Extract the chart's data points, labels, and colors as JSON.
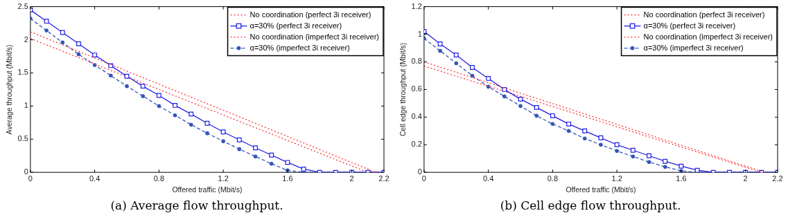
{
  "chart_data": [
    {
      "type": "line",
      "title": "(a) Average flow throughput.",
      "xlabel": "Offered traffic (Mbit/s)",
      "ylabel": "Average throughput (Mbit/s)",
      "x": [
        0,
        0.1,
        0.2,
        0.3,
        0.4,
        0.5,
        0.6,
        0.7,
        0.8,
        0.9,
        1.0,
        1.1,
        1.2,
        1.3,
        1.4,
        1.5,
        1.6,
        1.7,
        1.8,
        1.9,
        2.0,
        2.1,
        2.2
      ],
      "series": [
        {
          "name": "No coordination (perfect 3i receiver)",
          "color": "#ff3333",
          "x": [
            0,
            2.15
          ],
          "values": [
            2.12,
            0
          ],
          "marker": "none",
          "line_style": "dotted"
        },
        {
          "name": "α=30% (perfect 3i receiver)",
          "color": "#1f1fe6",
          "values": [
            2.45,
            2.28,
            2.11,
            1.94,
            1.77,
            1.61,
            1.45,
            1.3,
            1.16,
            1.01,
            0.88,
            0.74,
            0.61,
            0.49,
            0.37,
            0.26,
            0.15,
            0.05,
            0,
            0,
            0,
            0,
            0
          ],
          "marker": "square",
          "line_style": "solid"
        },
        {
          "name": "No coordination (imperfect 3i receiver)",
          "color": "#ff3333",
          "x": [
            0,
            2.1
          ],
          "values": [
            2.02,
            0
          ],
          "marker": "none",
          "line_style": "dotted"
        },
        {
          "name": "α=30% (imperfect 3i receiver)",
          "color": "#3355bb",
          "values": [
            2.32,
            2.14,
            1.96,
            1.78,
            1.62,
            1.46,
            1.3,
            1.15,
            1.0,
            0.86,
            0.72,
            0.59,
            0.47,
            0.35,
            0.24,
            0.13,
            0.03,
            0,
            0,
            0,
            0,
            0,
            0
          ],
          "marker": "circle",
          "line_style": "dashed"
        }
      ],
      "xlim": [
        0,
        2.2
      ],
      "xticks": [
        0,
        0.4,
        0.8,
        1.2,
        1.6,
        2,
        2.2
      ],
      "ylim": [
        0,
        2.5
      ],
      "yticks": [
        0,
        0.5,
        1,
        1.5,
        2,
        2.5
      ],
      "grid": false,
      "legend": "top right"
    },
    {
      "type": "line",
      "title": "(b) Cell edge flow throughput.",
      "xlabel": "Offered traffic (Mbit/s)",
      "ylabel": "Cell edge throughput (Mbit/s)",
      "x": [
        0,
        0.1,
        0.2,
        0.3,
        0.4,
        0.5,
        0.6,
        0.7,
        0.8,
        0.9,
        1.0,
        1.1,
        1.2,
        1.3,
        1.4,
        1.5,
        1.6,
        1.7,
        1.8,
        1.9,
        2.0,
        2.1,
        2.2
      ],
      "series": [
        {
          "name": "No coordination (perfect 3i receiver)",
          "color": "#ff3333",
          "x": [
            0,
            2.12
          ],
          "values": [
            0.8,
            0
          ],
          "marker": "none",
          "line_style": "dotted"
        },
        {
          "name": "α=30% (perfect 3i receiver)",
          "color": "#1f1fe6",
          "values": [
            1.02,
            0.93,
            0.85,
            0.76,
            0.68,
            0.6,
            0.53,
            0.47,
            0.41,
            0.35,
            0.3,
            0.25,
            0.2,
            0.16,
            0.12,
            0.08,
            0.045,
            0.015,
            0,
            0,
            0,
            0,
            0
          ],
          "marker": "square",
          "line_style": "solid"
        },
        {
          "name": "No coordination (imperfect 3i receiver)",
          "color": "#ff3333",
          "x": [
            0,
            2.1
          ],
          "values": [
            0.77,
            0
          ],
          "marker": "none",
          "line_style": "dotted"
        },
        {
          "name": "α=30% (imperfect 3i receiver)",
          "color": "#3355bb",
          "values": [
            0.97,
            0.88,
            0.79,
            0.7,
            0.62,
            0.55,
            0.48,
            0.41,
            0.35,
            0.3,
            0.245,
            0.2,
            0.155,
            0.115,
            0.075,
            0.04,
            0.01,
            0,
            0,
            0,
            0,
            0,
            0
          ],
          "marker": "circle",
          "line_style": "dashed"
        }
      ],
      "xlim": [
        0,
        2.2
      ],
      "xticks": [
        0,
        0.4,
        0.8,
        1.2,
        1.6,
        2,
        2.2
      ],
      "ylim": [
        0,
        1.2
      ],
      "yticks": [
        0,
        0.2,
        0.4,
        0.6,
        0.8,
        1,
        1.2
      ],
      "grid": false,
      "legend": "top right"
    }
  ]
}
